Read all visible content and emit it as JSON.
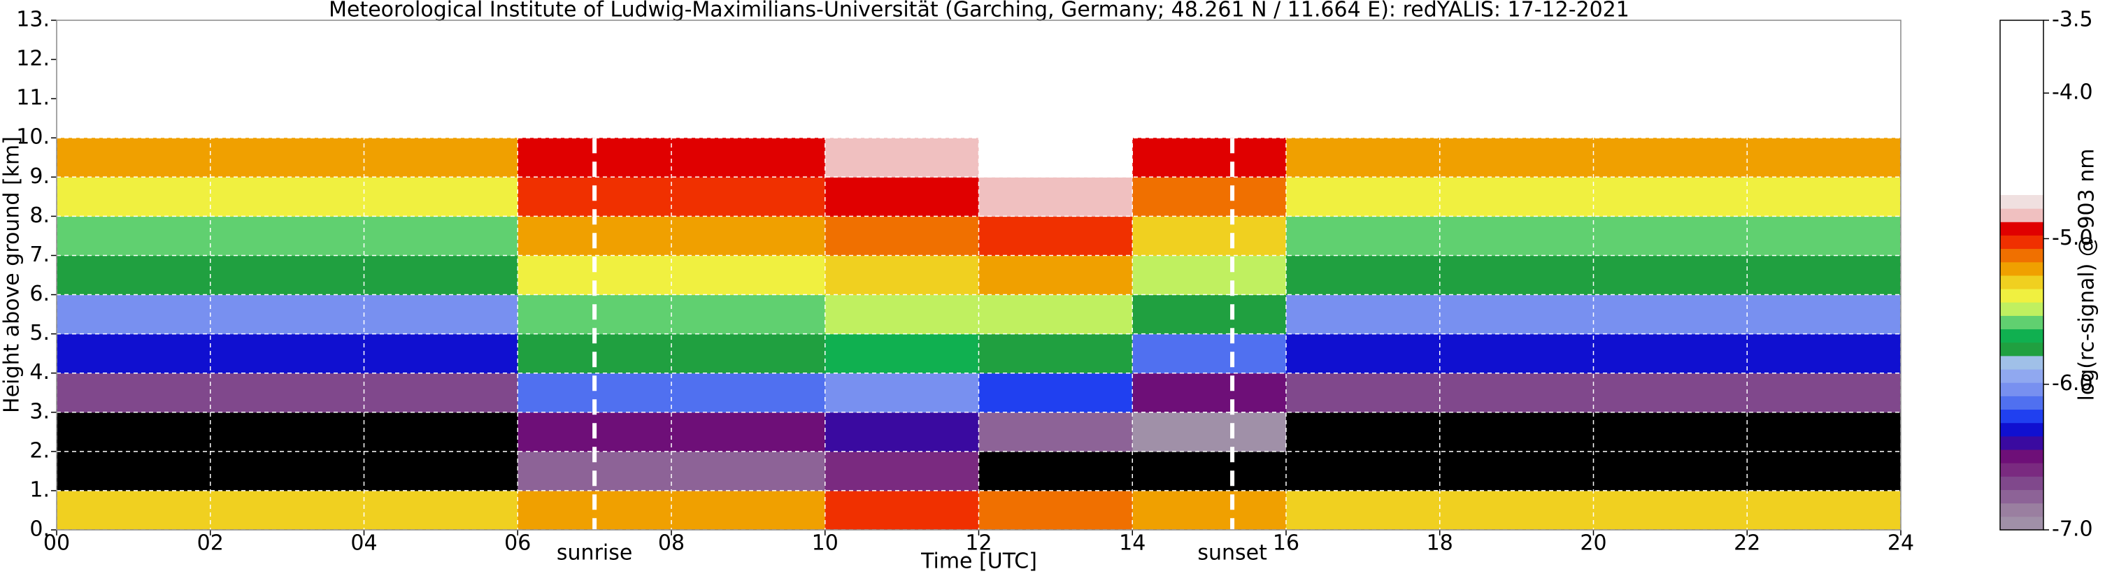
{
  "chart_data": {
    "type": "heatmap",
    "title": "Meteorological Institute of Ludwig-Maximilians-Universität (Garching, Germany; 48.261 N / 11.664 E):    redYALIS: 17-12-2021",
    "x_label": "Time [UTC]",
    "y_label": "Height above ground [km]",
    "colorbar_label": "log(rc-signal) @ 903 nm",
    "xlim": [
      0,
      24
    ],
    "ylim": [
      0,
      13
    ],
    "xticks": [
      {
        "value": 0,
        "label": "00"
      },
      {
        "value": 2,
        "label": "02"
      },
      {
        "value": 4,
        "label": "04"
      },
      {
        "value": 6,
        "label": "06"
      },
      {
        "value": 8,
        "label": "08"
      },
      {
        "value": 10,
        "label": "10"
      },
      {
        "value": 12,
        "label": "12"
      },
      {
        "value": 14,
        "label": "14"
      },
      {
        "value": 16,
        "label": "16"
      },
      {
        "value": 18,
        "label": "18"
      },
      {
        "value": 20,
        "label": "20"
      },
      {
        "value": 22,
        "label": "22"
      },
      {
        "value": 24,
        "label": "24"
      }
    ],
    "yticks": [
      {
        "value": 0,
        "label": "0."
      },
      {
        "value": 1,
        "label": "1."
      },
      {
        "value": 2,
        "label": "2."
      },
      {
        "value": 3,
        "label": "3."
      },
      {
        "value": 4,
        "label": "4."
      },
      {
        "value": 5,
        "label": "5."
      },
      {
        "value": 6,
        "label": "6."
      },
      {
        "value": 7,
        "label": "7."
      },
      {
        "value": 8,
        "label": "8."
      },
      {
        "value": 9,
        "label": "9."
      },
      {
        "value": 10,
        "label": "10."
      },
      {
        "value": 11,
        "label": "11."
      },
      {
        "value": 12,
        "label": "12."
      },
      {
        "value": 13,
        "label": "13."
      }
    ],
    "grid": true,
    "x_edges": [
      0,
      2,
      4,
      6,
      8,
      10,
      12,
      14,
      16,
      18,
      20,
      22,
      24
    ],
    "y_edges": [
      0,
      1,
      2,
      3,
      4,
      5,
      6,
      7,
      8,
      9,
      10
    ],
    "values": [
      [
        -5.3,
        -7.3,
        -7.1,
        -6.7,
        -6.3,
        -6.0,
        -5.8,
        -5.6,
        -5.4,
        -5.2
      ],
      [
        -5.3,
        -7.3,
        -7.1,
        -6.7,
        -6.3,
        -6.0,
        -5.8,
        -5.6,
        -5.4,
        -5.2
      ],
      [
        -5.3,
        -7.3,
        -7.1,
        -6.7,
        -6.3,
        -6.0,
        -5.8,
        -5.6,
        -5.4,
        -5.2
      ],
      [
        -5.2,
        -6.8,
        -6.5,
        -6.1,
        -5.8,
        -5.6,
        -5.4,
        -5.2,
        -5.0,
        -4.9
      ],
      [
        -5.2,
        -6.8,
        -6.5,
        -6.1,
        -5.8,
        -5.6,
        -5.4,
        -5.2,
        -5.0,
        -4.9
      ],
      [
        -5.0,
        -6.6,
        -6.4,
        -6.0,
        -5.7,
        -5.5,
        -5.3,
        -5.1,
        -4.9,
        -4.8
      ],
      [
        -5.1,
        -7.2,
        -6.8,
        -6.2,
        -5.8,
        -5.5,
        -5.2,
        -5.0,
        -4.8,
        -4.6
      ],
      [
        -5.2,
        -7.3,
        -7.0,
        -6.5,
        -6.1,
        -5.8,
        -5.5,
        -5.3,
        -5.1,
        -4.9
      ],
      [
        -5.3,
        -7.3,
        -7.1,
        -6.7,
        -6.3,
        -6.0,
        -5.8,
        -5.6,
        -5.4,
        -5.2
      ],
      [
        -5.3,
        -7.3,
        -7.1,
        -6.7,
        -6.3,
        -6.0,
        -5.8,
        -5.6,
        -5.4,
        -5.2
      ],
      [
        -5.3,
        -7.3,
        -7.1,
        -6.7,
        -6.3,
        -6.0,
        -5.8,
        -5.6,
        -5.4,
        -5.2
      ],
      [
        -5.3,
        -7.3,
        -7.1,
        -6.7,
        -6.3,
        -6.0,
        -5.8,
        -5.6,
        -5.4,
        -5.2
      ]
    ],
    "colorbar_lim": [
      -7,
      -3.5
    ],
    "colorbar_ticks": [
      -3.5,
      {
        "value": -4,
        "label": "-4.0"
      },
      {
        "value": -5,
        "label": "-5.0"
      },
      {
        "value": -6,
        "label": "-6.0"
      },
      {
        "value": -7,
        "label": "-7.0"
      }
    ],
    "colormap_range": [
      -7,
      -4.7
    ],
    "colormap": [
      "#a090a8",
      "#9a7fa0",
      "#8d6397",
      "#80488c",
      "#7a2a80",
      "#6e0f78",
      "#3a0aa0",
      "#1010d0",
      "#2040f0",
      "#5070f0",
      "#7890f0",
      "#90a8f0",
      "#a0c0e8",
      "#20a040",
      "#10b050",
      "#60d070",
      "#c0f060",
      "#f0f040",
      "#f0d020",
      "#f0a000",
      "#f07000",
      "#f03000",
      "#e00000",
      "#f0c0c0",
      "#f0e0e0"
    ],
    "under_color": "#000000",
    "over_color": "#ffffff",
    "annotations": [
      {
        "text": "sunrise",
        "x": 7.0
      },
      {
        "text": "sunset",
        "x": 15.3
      }
    ]
  }
}
